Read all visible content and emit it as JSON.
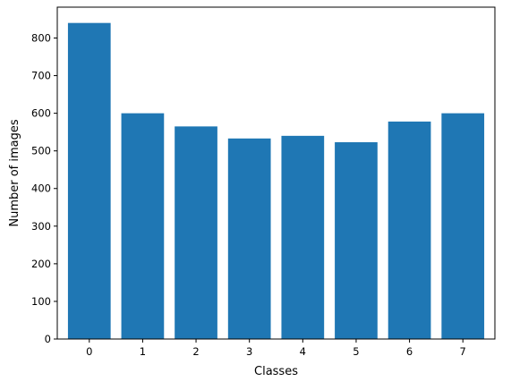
{
  "chart_data": {
    "type": "bar",
    "title": "",
    "xlabel": "Classes",
    "ylabel": "Number of images",
    "categories": [
      "0",
      "1",
      "2",
      "3",
      "4",
      "5",
      "6",
      "7"
    ],
    "values": [
      840,
      600,
      565,
      533,
      540,
      523,
      578,
      600
    ],
    "ylim": [
      0,
      882
    ],
    "yticks": [
      0,
      100,
      200,
      300,
      400,
      500,
      600,
      700,
      800
    ],
    "bar_color": "#1f77b4",
    "grid": false,
    "legend": "none"
  }
}
